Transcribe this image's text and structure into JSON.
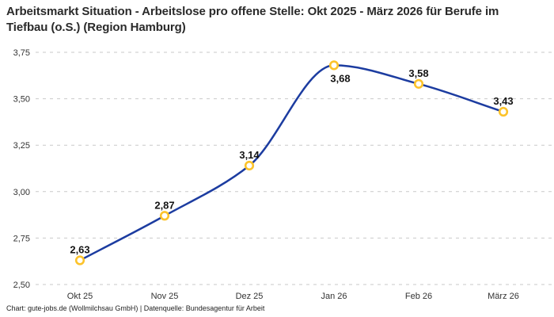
{
  "title": "Arbeitsmarkt Situation - Arbeitslose pro offene Stelle: Okt 2025 - März 2026 für Berufe im Tiefbau (o.S.) (Region Hamburg)",
  "footer": "Chart: gute-jobs.de (Wollmilchsau GmbH) | Datenquelle: Bundesagentur für Arbeit",
  "chart_data": {
    "type": "line",
    "categories": [
      "Okt 25",
      "Nov 25",
      "Dez 25",
      "Jan 26",
      "Feb 26",
      "März 26"
    ],
    "values": [
      2.63,
      2.87,
      3.14,
      3.68,
      3.58,
      3.43
    ],
    "point_labels": [
      "2,63",
      "2,87",
      "3,14",
      "3,68",
      "3,58",
      "3,43"
    ],
    "label_positions": [
      "above",
      "above",
      "above",
      "below",
      "above",
      "above"
    ],
    "y_ticks": [
      "2,50",
      "2,75",
      "3,00",
      "3,25",
      "3,50",
      "3,75"
    ],
    "ylim": [
      2.5,
      3.75
    ],
    "xlabel": "",
    "ylabel": "",
    "legend": "none",
    "grid": "horizontal-dashed",
    "colors": {
      "line": "#1c3ca0",
      "marker_ring": "#fcc32b",
      "marker_fill": "#ffffff",
      "gridline": "#c9c9c9",
      "tick_text": "#333333",
      "label_text": "#141414"
    }
  }
}
